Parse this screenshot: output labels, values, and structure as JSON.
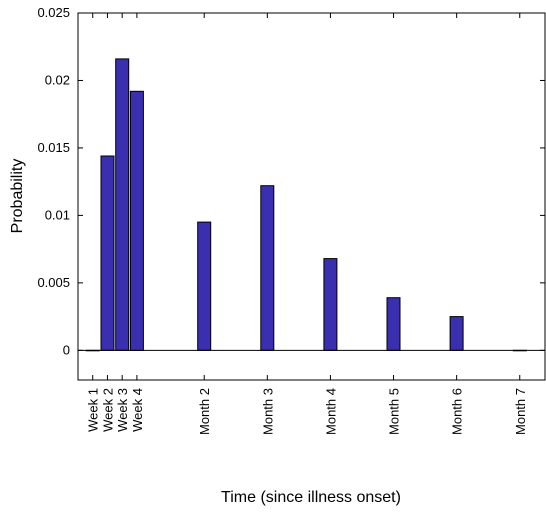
{
  "chart_data": {
    "type": "bar",
    "title": "",
    "xlabel": "Time (since illness onset)",
    "ylabel": "Probability",
    "ylim": [
      -0.0022,
      0.025
    ],
    "grid": false,
    "bar_color": "#3a2fae",
    "yticks": [
      0,
      0.005,
      0.01,
      0.015,
      0.02,
      0.025
    ],
    "ytick_labels": [
      "0",
      "0.005",
      "0.01",
      "0.015",
      "0.02",
      "0.025"
    ],
    "x_day_range": [
      0,
      222
    ],
    "categories": [
      "Week 1",
      "Week 2",
      "Week 3",
      "Week 4",
      "Month 2",
      "Month 3",
      "Month 4",
      "Month 5",
      "Month 6",
      "Month 7"
    ],
    "x_days": [
      7,
      14,
      21,
      28,
      60,
      90,
      120,
      150,
      180,
      210
    ],
    "values": [
      0.0,
      0.0144,
      0.0216,
      0.0192,
      0.0095,
      0.0122,
      0.0068,
      0.0039,
      0.0025,
      0.0
    ]
  }
}
